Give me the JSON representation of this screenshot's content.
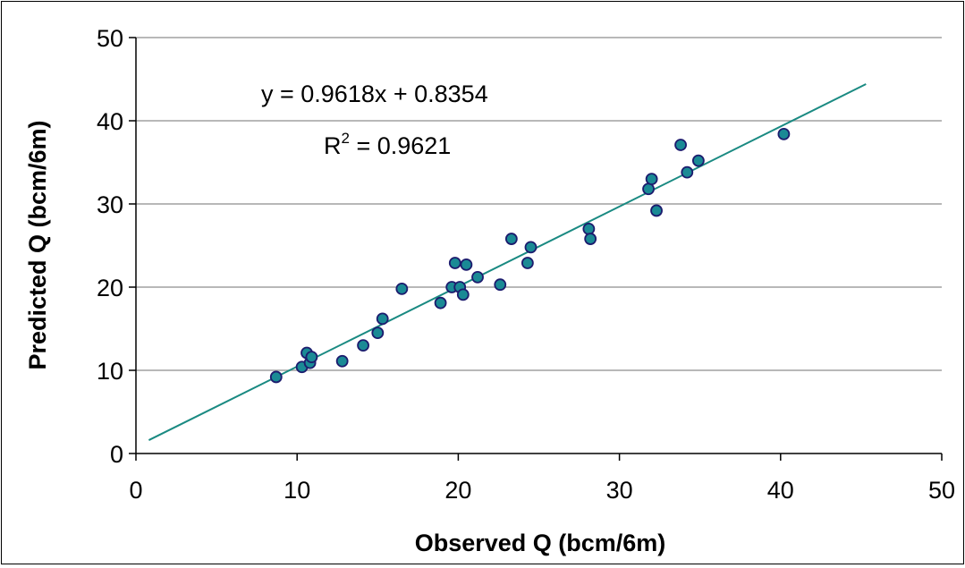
{
  "chart_data": {
    "type": "scatter",
    "title": "",
    "xlabel": "Observed Q (bcm/6m)",
    "ylabel": "Predicted Q (bcm/6m)",
    "xlim": [
      0,
      50
    ],
    "ylim": [
      0,
      50
    ],
    "x_ticks": [
      "0",
      "10",
      "20",
      "30",
      "40",
      "50"
    ],
    "y_ticks": [
      "0",
      "10",
      "20",
      "30",
      "40",
      "50"
    ],
    "grid": "horizontal",
    "legend": "none",
    "points": [
      {
        "x": 8.7,
        "y": 9.2
      },
      {
        "x": 10.3,
        "y": 10.4
      },
      {
        "x": 10.6,
        "y": 12.1
      },
      {
        "x": 10.8,
        "y": 10.9
      },
      {
        "x": 10.9,
        "y": 11.6
      },
      {
        "x": 12.8,
        "y": 11.1
      },
      {
        "x": 14.1,
        "y": 13.0
      },
      {
        "x": 15.0,
        "y": 14.5
      },
      {
        "x": 15.3,
        "y": 16.2
      },
      {
        "x": 16.5,
        "y": 19.8
      },
      {
        "x": 18.9,
        "y": 18.1
      },
      {
        "x": 19.6,
        "y": 20.0
      },
      {
        "x": 19.8,
        "y": 22.9
      },
      {
        "x": 20.1,
        "y": 20.0
      },
      {
        "x": 20.3,
        "y": 19.1
      },
      {
        "x": 20.5,
        "y": 22.7
      },
      {
        "x": 21.2,
        "y": 21.2
      },
      {
        "x": 22.6,
        "y": 20.3
      },
      {
        "x": 23.3,
        "y": 25.8
      },
      {
        "x": 24.3,
        "y": 22.9
      },
      {
        "x": 24.5,
        "y": 24.8
      },
      {
        "x": 28.1,
        "y": 27.0
      },
      {
        "x": 28.2,
        "y": 25.8
      },
      {
        "x": 31.8,
        "y": 31.8
      },
      {
        "x": 32.0,
        "y": 33.0
      },
      {
        "x": 32.3,
        "y": 29.2
      },
      {
        "x": 33.8,
        "y": 37.1
      },
      {
        "x": 34.2,
        "y": 33.8
      },
      {
        "x": 34.9,
        "y": 35.2
      },
      {
        "x": 40.2,
        "y": 38.4
      }
    ],
    "trendline": {
      "slope": 0.9618,
      "intercept": 0.8354,
      "x_range": [
        0.8,
        45.3
      ],
      "equation_label": "y = 0.9618x + 0.8354",
      "r2_prefix": "R",
      "r2_exponent": "2",
      "r2_value": " = 0.9621"
    },
    "colors": {
      "marker_fill": "#1a8a95",
      "marker_stroke": "#1c1c6e",
      "trendline": "#1a8a82",
      "grid": "#a0a0a0",
      "axis": "#000000"
    }
  }
}
